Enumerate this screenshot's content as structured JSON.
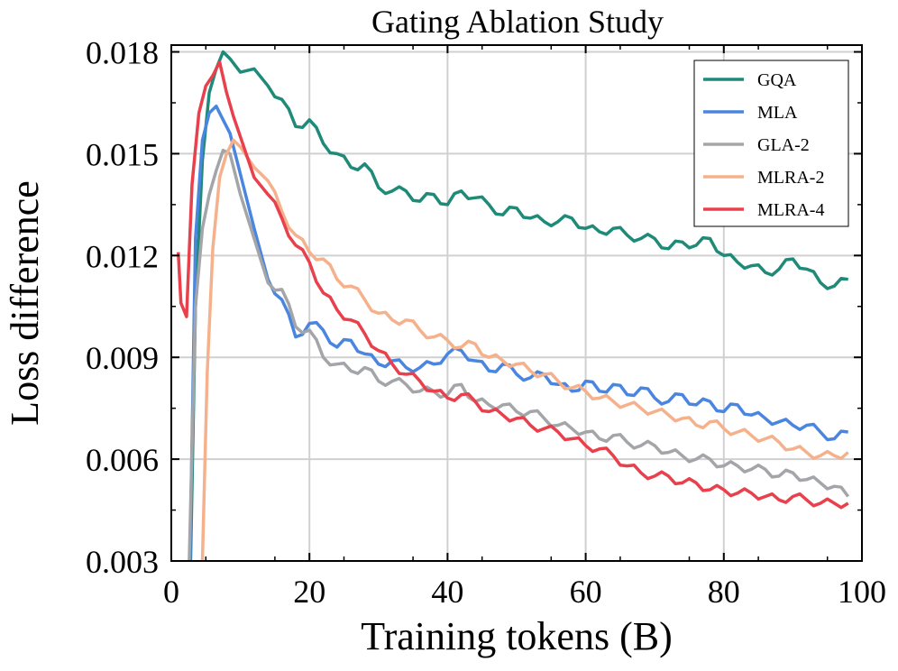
{
  "chart_data": {
    "type": "line",
    "title": "Gating Ablation Study",
    "xlabel": "Training tokens (B)",
    "ylabel": "Loss difference",
    "xlim": [
      0,
      100
    ],
    "ylim": [
      0.003,
      0.0182
    ],
    "xticks": [
      0,
      20,
      40,
      60,
      80,
      100
    ],
    "xtick_labels": [
      "0",
      "20",
      "40",
      "60",
      "80",
      "100"
    ],
    "yticks": [
      0.003,
      0.006,
      0.009,
      0.012,
      0.015,
      0.018
    ],
    "ytick_labels": [
      "0.003",
      "0.006",
      "0.009",
      "0.012",
      "0.015",
      "0.018"
    ],
    "grid": true,
    "legend_position": "top-right",
    "series": [
      {
        "name": "GQA",
        "color": "#1f8a78",
        "x": [
          2.8,
          3.5,
          4.5,
          5.5,
          6.5,
          7.5,
          8.5,
          10,
          12,
          14,
          16,
          18,
          20,
          22,
          24,
          26,
          28,
          30,
          32,
          34,
          36,
          38,
          40,
          42,
          44,
          46,
          48,
          50,
          52,
          54,
          56,
          58,
          60,
          62,
          64,
          66,
          68,
          70,
          72,
          74,
          76,
          78,
          80,
          82,
          84,
          86,
          88,
          90,
          92,
          94,
          96,
          98
        ],
        "values": [
          0.003,
          0.0105,
          0.0148,
          0.0168,
          0.0175,
          0.018,
          0.0178,
          0.0174,
          0.0175,
          0.017,
          0.0166,
          0.0158,
          0.016,
          0.0153,
          0.015,
          0.0146,
          0.0147,
          0.014,
          0.0139,
          0.0139,
          0.0136,
          0.0138,
          0.0135,
          0.0139,
          0.0137,
          0.0135,
          0.0132,
          0.0134,
          0.0131,
          0.013,
          0.013,
          0.0131,
          0.0128,
          0.0127,
          0.0128,
          0.0126,
          0.0125,
          0.0125,
          0.0122,
          0.0124,
          0.0123,
          0.0125,
          0.012,
          0.0118,
          0.0117,
          0.0115,
          0.0116,
          0.0119,
          0.0116,
          0.0112,
          0.0111,
          0.0113
        ]
      },
      {
        "name": "MLA",
        "color": "#4a86e0",
        "x": [
          2.7,
          3.5,
          4.5,
          5.5,
          6.5,
          7.5,
          8.5,
          10,
          12,
          14,
          16,
          18,
          20,
          22,
          24,
          26,
          28,
          30,
          32,
          34,
          36,
          38,
          40,
          42,
          44,
          46,
          48,
          50,
          52,
          54,
          56,
          58,
          60,
          62,
          64,
          66,
          68,
          70,
          72,
          74,
          76,
          78,
          80,
          82,
          84,
          86,
          88,
          90,
          92,
          94,
          96,
          98
        ],
        "values": [
          0.003,
          0.0125,
          0.0154,
          0.0162,
          0.0164,
          0.016,
          0.0156,
          0.0144,
          0.0128,
          0.0113,
          0.0107,
          0.0096,
          0.01,
          0.0098,
          0.0093,
          0.0095,
          0.0091,
          0.0088,
          0.0089,
          0.0087,
          0.0087,
          0.0088,
          0.0091,
          0.0092,
          0.0089,
          0.0086,
          0.0088,
          0.0085,
          0.0084,
          0.0085,
          0.0082,
          0.008,
          0.0083,
          0.008,
          0.0082,
          0.0079,
          0.0081,
          0.0078,
          0.0077,
          0.0079,
          0.0076,
          0.0077,
          0.0074,
          0.0076,
          0.0073,
          0.0072,
          0.0071,
          0.007,
          0.007,
          0.0068,
          0.0066,
          0.0068
        ]
      },
      {
        "name": "GLA-2",
        "color": "#a3a5a8",
        "x": [
          2.6,
          3.5,
          4.5,
          5.5,
          6.5,
          7.5,
          8.5,
          10,
          12,
          14,
          16,
          18,
          20,
          22,
          24,
          26,
          28,
          30,
          32,
          34,
          36,
          38,
          40,
          42,
          44,
          46,
          48,
          50,
          52,
          54,
          56,
          58,
          60,
          62,
          64,
          66,
          68,
          70,
          72,
          74,
          76,
          78,
          80,
          82,
          84,
          86,
          88,
          90,
          92,
          94,
          96,
          98
        ],
        "values": [
          0.003,
          0.0105,
          0.0128,
          0.0138,
          0.0145,
          0.0151,
          0.015,
          0.0138,
          0.0125,
          0.0112,
          0.011,
          0.0099,
          0.0098,
          0.009,
          0.0088,
          0.0086,
          0.0087,
          0.0083,
          0.0083,
          0.0082,
          0.008,
          0.008,
          0.0079,
          0.0082,
          0.0077,
          0.0076,
          0.0076,
          0.0074,
          0.0074,
          0.0072,
          0.007,
          0.0069,
          0.0068,
          0.0066,
          0.0067,
          0.0065,
          0.0064,
          0.0064,
          0.0062,
          0.0061,
          0.006,
          0.006,
          0.0058,
          0.0058,
          0.0057,
          0.0057,
          0.0055,
          0.0056,
          0.0054,
          0.0053,
          0.0052,
          0.0049
        ]
      },
      {
        "name": "MLRA-2",
        "color": "#f5b18c",
        "x": [
          4.5,
          5.2,
          6,
          7,
          8,
          9,
          10,
          12,
          14,
          16,
          18,
          20,
          22,
          24,
          26,
          28,
          30,
          32,
          34,
          36,
          38,
          40,
          42,
          44,
          46,
          48,
          50,
          52,
          54,
          56,
          58,
          60,
          62,
          64,
          66,
          68,
          70,
          72,
          74,
          76,
          78,
          80,
          82,
          84,
          86,
          88,
          90,
          92,
          94,
          96,
          98
        ],
        "values": [
          0.003,
          0.0085,
          0.0122,
          0.0143,
          0.015,
          0.0154,
          0.0152,
          0.0146,
          0.0142,
          0.0133,
          0.0126,
          0.0121,
          0.0119,
          0.0113,
          0.0111,
          0.0107,
          0.0103,
          0.0101,
          0.0101,
          0.0098,
          0.0096,
          0.0095,
          0.0093,
          0.0094,
          0.009,
          0.0089,
          0.0088,
          0.0086,
          0.0085,
          0.0083,
          0.0081,
          0.008,
          0.0078,
          0.0077,
          0.0076,
          0.0075,
          0.0074,
          0.0073,
          0.0072,
          0.007,
          0.0071,
          0.0069,
          0.0068,
          0.0067,
          0.0066,
          0.0065,
          0.0063,
          0.0062,
          0.0061,
          0.0061,
          0.0062
        ]
      },
      {
        "name": "MLRA-4",
        "color": "#e8404c",
        "x": [
          1,
          1.4,
          2.2,
          3,
          4,
          5,
          6,
          7,
          8,
          9,
          10,
          12,
          14,
          16,
          18,
          20,
          22,
          24,
          26,
          28,
          30,
          32,
          34,
          36,
          38,
          40,
          42,
          44,
          46,
          48,
          50,
          52,
          54,
          56,
          58,
          60,
          62,
          64,
          66,
          68,
          70,
          72,
          74,
          76,
          78,
          80,
          82,
          84,
          86,
          88,
          90,
          92,
          94,
          96,
          98
        ],
        "values": [
          0.0121,
          0.0106,
          0.0102,
          0.0141,
          0.0162,
          0.017,
          0.0173,
          0.0177,
          0.0168,
          0.0161,
          0.0155,
          0.0143,
          0.0138,
          0.0131,
          0.0123,
          0.0118,
          0.0109,
          0.0104,
          0.0101,
          0.0097,
          0.0092,
          0.0088,
          0.0085,
          0.0083,
          0.008,
          0.0078,
          0.0079,
          0.0077,
          0.0074,
          0.0073,
          0.0072,
          0.007,
          0.0069,
          0.0068,
          0.0066,
          0.0064,
          0.0063,
          0.0061,
          0.0058,
          0.0056,
          0.0055,
          0.0055,
          0.0053,
          0.0053,
          0.0051,
          0.0051,
          0.005,
          0.005,
          0.0049,
          0.0048,
          0.0049,
          0.0048,
          0.0047,
          0.0047,
          0.0047
        ]
      }
    ]
  }
}
